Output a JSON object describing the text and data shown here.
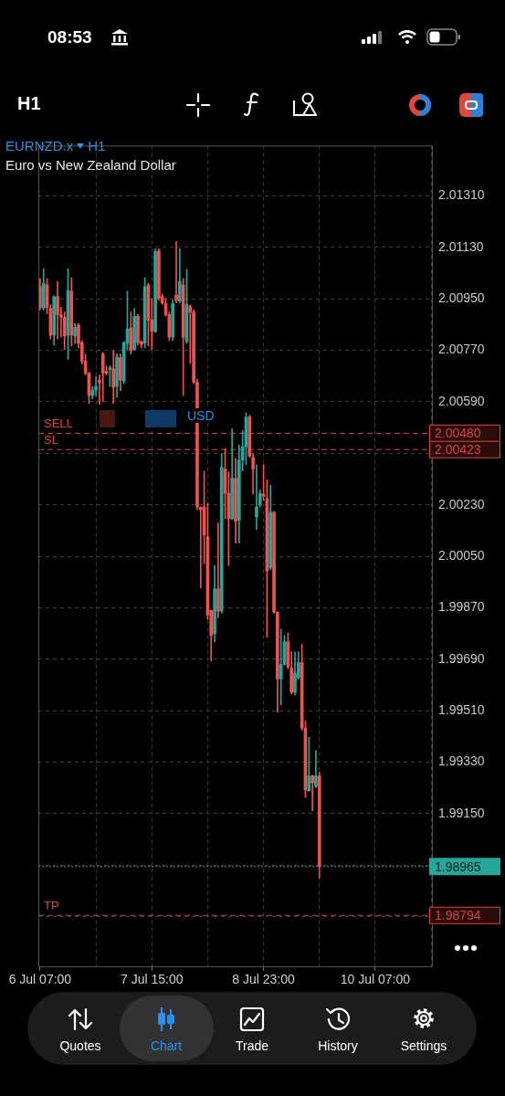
{
  "chart_data": {
    "type": "candlestick",
    "title": "EURNZD.x",
    "subtitle": "Euro vs New Zealand Dollar",
    "annotations": [
      "08:53",
      "H1",
      "H1",
      "USD",
      "Quotes",
      "Chart",
      "Trade",
      "History",
      "Settings",
      "2.00480",
      "2.00423",
      "1.98965",
      "1.98794"
    ],
    "colors": [
      "#ef5350",
      "#26a69a",
      "#ef5350",
      "#ef5350",
      "#26a69a",
      "#ef5350",
      "#ef5350",
      "#ef5350",
      "#26a69a",
      "#ef5350",
      "#26a69a",
      "#ef5350",
      "#ef5350",
      "#ef5350",
      "#ef5350",
      "#26a69a",
      "#26a69a",
      "#ef5350",
      "#ef5350",
      "#ef5350",
      "#26a69a",
      "#ef5350",
      "#26a69a",
      "#ef5350",
      "#26a69a",
      "#26a69a",
      "#ef5350",
      "#26a69a",
      "#ef5350",
      "#ef5350",
      "#26a69a",
      "#ef5350",
      "#ef5350",
      "#26a69a",
      "#ef5350",
      "#ef5350",
      "#ef5350",
      "#ef5350",
      "#26a69a",
      "#ef5350",
      "#26a69a",
      "#ef5350",
      "#26a69a",
      "#ef5350",
      "#ef5350",
      "#ef5350",
      "#ef5350",
      "#ef5350",
      "#ef5350",
      "#ef5350",
      "#26a69a",
      "#ef5350",
      "#26a69a",
      "#ef5350",
      "#ef5350",
      "#26a69a",
      "#ef5350",
      "#26a69a",
      "#26a69a",
      "#26a69a",
      "#ef5350",
      "#ef5350",
      "#26a69a",
      "#26a69a",
      "#ef5350",
      "#ef5350",
      "#26a69a",
      "#ef5350",
      "#ef5350",
      "#26a69a",
      "#26a69a",
      "#ef5350",
      "#ef5350",
      "#26a69a",
      "#26a69a",
      "#ef5350",
      "#ef5350",
      "#26a69a",
      "#ef5350",
      "#26a69a",
      "#ef5350",
      null,
      null,
      null,
      null,
      null,
      null,
      null,
      null,
      null,
      null,
      null,
      null,
      null,
      null,
      null,
      null,
      null,
      null,
      null,
      null,
      null,
      null,
      null,
      null,
      null,
      null,
      null,
      null,
      null,
      null,
      null,
      null
    ],
    "categories": [
      "6 Jul 07:00",
      null,
      null,
      null,
      null,
      null,
      null,
      null,
      null,
      null,
      null,
      null,
      null,
      null,
      null,
      null,
      null,
      null,
      null,
      null,
      null,
      null,
      null,
      null,
      null,
      null,
      null,
      null,
      null,
      null,
      null,
      null,
      "7 Jul 15:00",
      null,
      null,
      null,
      null,
      null,
      null,
      null,
      null,
      null,
      null,
      null,
      null,
      null,
      null,
      null,
      null,
      null,
      null,
      null,
      null,
      null,
      null,
      null,
      null,
      null,
      null,
      null,
      null,
      null,
      null,
      null,
      "8 Jul 23:00",
      null,
      null,
      null,
      null,
      null,
      null,
      null,
      null,
      null,
      null,
      null,
      null,
      null,
      null,
      null,
      null,
      null,
      null,
      null,
      null,
      null,
      null,
      null,
      null,
      null,
      null,
      null,
      null,
      null,
      null,
      null,
      "10 Jul 07:00",
      null,
      null,
      null,
      null,
      null,
      null,
      null,
      null,
      null,
      null,
      null,
      null,
      null,
      null,
      null,
      null
    ],
    "ohlc": [
      [
        2.00993,
        2.01021,
        2.00911,
        2.0092
      ],
      [
        2.00917,
        2.01056,
        2.00911,
        2.01005
      ],
      [
        2.00999,
        2.01021,
        2.00898,
        2.0092
      ],
      [
        2.00917,
        2.0093,
        2.0081,
        2.00823
      ],
      [
        2.00823,
        2.00961,
        2.00788,
        2.00958
      ],
      [
        2.00958,
        2.01011,
        2.0081,
        2.00895
      ],
      [
        2.00895,
        2.0092,
        2.00816,
        2.00886
      ],
      [
        2.00886,
        2.00904,
        2.00773,
        2.0082
      ],
      [
        2.00823,
        2.01056,
        2.00738,
        2.0098
      ],
      [
        2.00977,
        2.01024,
        2.00785,
        2.00823
      ],
      [
        2.0082,
        2.00864,
        2.00794,
        2.00851
      ],
      [
        2.00858,
        2.00864,
        2.00779,
        2.00794
      ],
      [
        2.00797,
        2.00804,
        2.00722,
        2.00732
      ],
      [
        2.00732,
        2.00757,
        2.00684,
        2.0069
      ],
      [
        2.0069,
        2.00694,
        2.00584,
        2.00612
      ],
      [
        2.00612,
        2.00644,
        2.006,
        2.00631
      ],
      [
        2.00631,
        2.00678,
        2.00612,
        2.00644
      ],
      [
        2.00666,
        2.00684,
        2.00581,
        2.00656
      ],
      [
        2.00757,
        2.00763,
        2.0059,
        2.0069
      ],
      [
        2.00697,
        2.00716,
        2.00684,
        2.0069
      ],
      [
        2.00703,
        2.00716,
        2.00644,
        2.0071
      ],
      [
        2.00706,
        2.00769,
        2.00584,
        2.00641
      ],
      [
        2.00644,
        2.00757,
        2.00606,
        2.00747
      ],
      [
        2.00744,
        2.00757,
        2.00628,
        2.00666
      ],
      [
        2.00662,
        2.00801,
        2.00653,
        2.00797
      ],
      [
        2.00794,
        2.00977,
        2.00773,
        2.00845
      ],
      [
        2.00848,
        2.00904,
        2.00757,
        2.00769
      ],
      [
        2.00773,
        2.00917,
        2.00769,
        2.00889
      ],
      [
        2.00889,
        2.00895,
        2.00788,
        2.00797
      ],
      [
        2.00801,
        2.00804,
        2.00779,
        2.00791
      ],
      [
        2.00794,
        2.01024,
        2.00779,
        2.00993
      ],
      [
        2.00999,
        2.01005,
        2.00785,
        2.00876
      ],
      [
        2.00876,
        2.00952,
        2.00773,
        2.00836
      ],
      [
        2.00836,
        2.01125,
        2.00832,
        2.01115
      ],
      [
        2.01118,
        2.01125,
        2.00945,
        2.00952
      ],
      [
        2.00958,
        2.00967,
        2.0093,
        2.00936
      ],
      [
        2.00933,
        2.00952,
        2.00889,
        2.00895
      ],
      [
        2.00895,
        2.00904,
        2.00804,
        2.00816
      ],
      [
        2.00816,
        2.00945,
        2.00804,
        2.00933
      ],
      [
        2.00964,
        2.0115,
        2.00936,
        2.00945
      ],
      [
        2.00942,
        2.01125,
        2.00936,
        2.01011
      ],
      [
        2.00999,
        2.01021,
        2.00612,
        2.00816
      ],
      [
        2.00801,
        2.01053,
        2.00794,
        2.0093
      ],
      [
        2.00923,
        2.0093,
        2.00725,
        2.00904
      ],
      [
        2.00904,
        2.00911,
        2.00653,
        2.00659
      ],
      [
        2.00659,
        2.00669,
        2.00213,
        2.00222
      ],
      [
        2.00222,
        2.00222,
        1.99939,
        2.00213
      ],
      [
        2.00222,
        2.00348,
        2.00024,
        2.00125
      ],
      [
        2.00118,
        2.00235,
        1.99829,
        1.99845
      ],
      [
        1.99861,
        1.99861,
        1.99684,
        1.99773
      ],
      [
        1.99779,
        2.00018,
        1.99751,
        1.99936
      ],
      [
        1.99936,
        2.00166,
        1.99835,
        1.99858
      ],
      [
        1.99858,
        2.00408,
        1.99851,
        2.00361
      ],
      [
        2.00355,
        2.00427,
        2.00181,
        2.0027
      ],
      [
        2.0027,
        2.00345,
        2.00018,
        2.00181
      ],
      [
        2.00181,
        2.00496,
        2.00178,
        2.00323
      ],
      [
        2.00323,
        2.00392,
        2.00096,
        2.00172
      ],
      [
        2.00175,
        2.00439,
        2.00096,
        2.00386
      ],
      [
        2.00386,
        2.0049,
        2.00348,
        2.00433
      ],
      [
        2.00433,
        2.00552,
        2.0037,
        2.00537
      ],
      [
        2.00537,
        2.00543,
        2.00395,
        2.00401
      ],
      [
        2.00395,
        2.00408,
        2.00267,
        2.00355
      ],
      [
        2.00188,
        2.0037,
        2.00144,
        2.00222
      ],
      [
        2.00229,
        2.00282,
        2.00222,
        2.0027
      ],
      [
        2.00267,
        2.0037,
        2.00244,
        2.0026
      ],
      [
        2.00251,
        2.00317,
        1.99766,
        1.99999
      ],
      [
        2.00009,
        2.00298,
        2.00002,
        2.00204
      ],
      [
        2.00204,
        2.00207,
        1.99851,
        1.99855
      ],
      [
        1.99855,
        1.99855,
        1.99505,
        1.99621
      ],
      [
        1.99621,
        1.99795,
        1.9953,
        1.99672
      ],
      [
        1.99672,
        1.99773,
        1.99669,
        1.99751
      ],
      [
        1.99751,
        1.99782,
        1.99656,
        1.99663
      ],
      [
        1.99659,
        1.99716,
        1.99568,
        1.99574
      ],
      [
        1.99574,
        1.99716,
        1.99565,
        1.9964
      ],
      [
        1.99625,
        1.99716,
        1.99621,
        1.99678
      ],
      [
        1.99678,
        1.99741,
        1.99442,
        1.99449
      ],
      [
        1.99449,
        1.99474,
        1.99207,
        1.99232
      ],
      [
        1.99229,
        1.99417,
        1.99229,
        1.99282
      ],
      [
        1.99282,
        1.99285,
        1.9916,
        1.99257
      ],
      [
        1.99245,
        1.9937,
        1.99241,
        1.99282
      ],
      [
        1.99282,
        1.99295,
        1.98924,
        1.98965
      ],
      null,
      null,
      null,
      null,
      null,
      null,
      null,
      null,
      null,
      null,
      null,
      null,
      null,
      null,
      null,
      null,
      null,
      null,
      null,
      null,
      null,
      null,
      null,
      null,
      null,
      null,
      null,
      null,
      null,
      null,
      null,
      null
    ],
    "ylim": [
      1.98616,
      2.01486
    ],
    "yticks": [
      {
        "value": 2.0131,
        "label": "2.01310"
      },
      {
        "value": 2.0113,
        "label": "2.01130"
      },
      {
        "value": 2.0095,
        "label": "2.00950"
      },
      {
        "value": 2.0077,
        "label": "2.00770"
      },
      {
        "value": 2.0059,
        "label": "2.00590"
      },
      {
        "value": 2.0041,
        "label": null
      },
      {
        "value": 2.0023,
        "label": "2.00230"
      },
      {
        "value": 2.0005,
        "label": "2.00050"
      },
      {
        "value": 1.9987,
        "label": "1.99870"
      },
      {
        "value": 1.9969,
        "label": "1.99690"
      },
      {
        "value": 1.9951,
        "label": "1.99510"
      },
      {
        "value": 1.9933,
        "label": "1.99330"
      },
      {
        "value": 1.9915,
        "label": "1.99150"
      },
      {
        "value": 1.9897,
        "label": null
      },
      {
        "value": 1.9879,
        "label": null
      }
    ],
    "ref_lines": [
      {
        "axis": "y",
        "value": 2.0048,
        "label": "SELL",
        "color": "#d9443c",
        "line_style": "dashed"
      },
      {
        "axis": "y",
        "value": 2.00423,
        "label": "SL",
        "color": "#d9443c",
        "line_style": "dashed"
      },
      {
        "axis": "y",
        "value": 1.98965,
        "color": "#26a69a",
        "line_style": "dotted"
      },
      {
        "axis": "y",
        "value": 1.98794,
        "label": "TP",
        "color": "#d9443c",
        "line_style": "dashed"
      }
    ],
    "grid": true
  }
}
